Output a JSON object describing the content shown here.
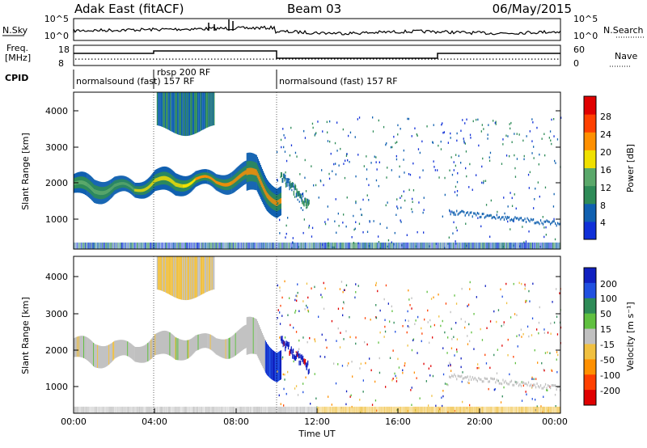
{
  "header": {
    "site_title": "Adak East (fitACF)",
    "beam": "Beam 03",
    "date": "06/May/2015"
  },
  "summary_panels": {
    "noise": {
      "left_label": "N.Sky",
      "right_label": "N.Search",
      "left_ticks": [
        "10^5",
        "10^0"
      ],
      "right_ticks": [
        "10^5",
        "10^0"
      ]
    },
    "freq": {
      "left_label_line1": "Freq.",
      "left_label_line2": "[MHz]",
      "right_label": "Nave",
      "left_ticks": [
        "18",
        "8"
      ],
      "right_ticks": [
        "60",
        "0"
      ]
    },
    "cpid": {
      "label": "CPID",
      "segments": [
        {
          "start_hour": 0,
          "end_hour": 3.9,
          "text": "normalsound (fast) 157 RF"
        },
        {
          "start_hour": 3.9,
          "end_hour": 10.0,
          "text": "rbsp 200 RF"
        },
        {
          "start_hour": 10.0,
          "end_hour": 24.0,
          "text": "normalsound (fast) 157 RF"
        }
      ]
    }
  },
  "axes": {
    "ylabel": "Slant Range [km]",
    "xlabel": "Time UT",
    "x_ticks": [
      "00:00",
      "04:00",
      "08:00",
      "12:00",
      "16:00",
      "20:00",
      "00:00"
    ],
    "y_ticks": [
      "1000",
      "2000",
      "3000",
      "4000"
    ]
  },
  "colorbars": {
    "power": {
      "label": "Power [dB]",
      "ticks": [
        "4",
        "8",
        "12",
        "16",
        "20",
        "24",
        "28"
      ],
      "colors": [
        "#1030d8",
        "#1060b0",
        "#2e8b57",
        "#5aa86a",
        "#f0e000",
        "#ff9000",
        "#ff4000",
        "#e00000"
      ]
    },
    "velocity": {
      "label": "Velocity [m s⁻¹]",
      "ticks": [
        "200",
        "100",
        "50",
        "15",
        "-15",
        "-50",
        "-100",
        "-200"
      ],
      "colors": [
        "#1020c0",
        "#2050e0",
        "#2e8b57",
        "#60c040",
        "#c0c0c0",
        "#f0c040",
        "#ff9000",
        "#ff4000",
        "#e00000"
      ]
    }
  },
  "chart_data": [
    {
      "type": "heatmap",
      "title": "Power",
      "xlabel": "Time UT",
      "ylabel": "Slant Range [km]",
      "x_range_hours": [
        0,
        24
      ],
      "ylim_km": [
        200,
        4500
      ],
      "colorbar_label": "Power [dB]",
      "colorbar_range": [
        0,
        32
      ],
      "main_band": {
        "hours": [
          0,
          1,
          2,
          3,
          4,
          5,
          6,
          7,
          8,
          9,
          9.5,
          10
        ],
        "center_km": [
          2000,
          1780,
          1950,
          1800,
          2100,
          1950,
          2150,
          2000,
          2150,
          2250,
          1800,
          1500
        ],
        "peak_power_db": [
          18,
          14,
          16,
          16,
          18,
          20,
          22,
          24,
          26,
          28,
          18,
          12
        ]
      },
      "high_range_patch": {
        "hours": [
          4.1,
          6.9
        ],
        "range_km": [
          3400,
          4500
        ]
      }
    },
    {
      "type": "heatmap",
      "title": "Velocity",
      "xlabel": "Time UT",
      "ylabel": "Slant Range [km]",
      "x_range_hours": [
        0,
        24
      ],
      "ylim_km": [
        200,
        4500
      ],
      "colorbar_label": "Velocity [m s⁻¹]",
      "colorbar_range": [
        -200,
        200
      ],
      "main_band_velocity_ms": [
        0,
        -5,
        5,
        0,
        -10,
        0,
        5,
        -10,
        -30,
        -60,
        150,
        200
      ],
      "high_range_patch_velocity_ms": -60
    }
  ]
}
